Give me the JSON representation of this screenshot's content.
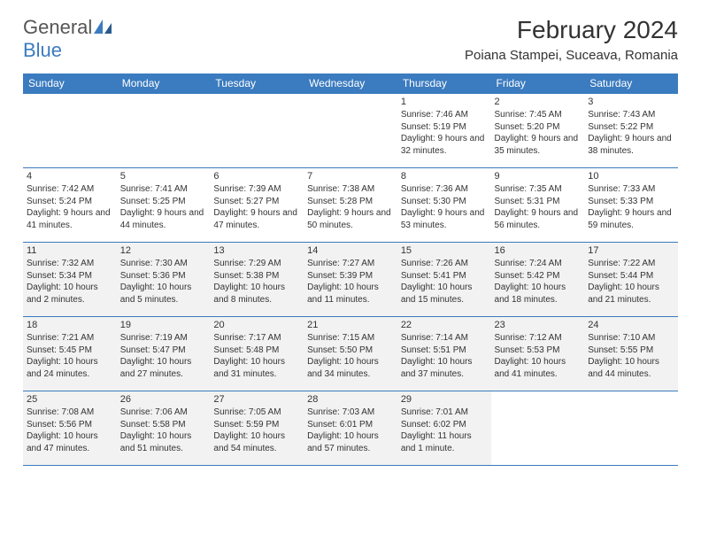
{
  "logo": {
    "general": "General",
    "blue": "Blue"
  },
  "title": {
    "month": "February 2024",
    "location": "Poiana Stampei, Suceava, Romania"
  },
  "colors": {
    "accent": "#3b7bbf",
    "shade": "#f2f2f2",
    "text": "#333333",
    "white": "#ffffff"
  },
  "weekdays": [
    "Sunday",
    "Monday",
    "Tuesday",
    "Wednesday",
    "Thursday",
    "Friday",
    "Saturday"
  ],
  "weeks": [
    [
      {
        "empty": true
      },
      {
        "empty": true
      },
      {
        "empty": true
      },
      {
        "empty": true
      },
      {
        "num": "1",
        "sunrise": "Sunrise: 7:46 AM",
        "sunset": "Sunset: 5:19 PM",
        "daylight": "Daylight: 9 hours and 32 minutes."
      },
      {
        "num": "2",
        "sunrise": "Sunrise: 7:45 AM",
        "sunset": "Sunset: 5:20 PM",
        "daylight": "Daylight: 9 hours and 35 minutes."
      },
      {
        "num": "3",
        "sunrise": "Sunrise: 7:43 AM",
        "sunset": "Sunset: 5:22 PM",
        "daylight": "Daylight: 9 hours and 38 minutes."
      }
    ],
    [
      {
        "num": "4",
        "sunrise": "Sunrise: 7:42 AM",
        "sunset": "Sunset: 5:24 PM",
        "daylight": "Daylight: 9 hours and 41 minutes."
      },
      {
        "num": "5",
        "sunrise": "Sunrise: 7:41 AM",
        "sunset": "Sunset: 5:25 PM",
        "daylight": "Daylight: 9 hours and 44 minutes."
      },
      {
        "num": "6",
        "sunrise": "Sunrise: 7:39 AM",
        "sunset": "Sunset: 5:27 PM",
        "daylight": "Daylight: 9 hours and 47 minutes."
      },
      {
        "num": "7",
        "sunrise": "Sunrise: 7:38 AM",
        "sunset": "Sunset: 5:28 PM",
        "daylight": "Daylight: 9 hours and 50 minutes."
      },
      {
        "num": "8",
        "sunrise": "Sunrise: 7:36 AM",
        "sunset": "Sunset: 5:30 PM",
        "daylight": "Daylight: 9 hours and 53 minutes."
      },
      {
        "num": "9",
        "sunrise": "Sunrise: 7:35 AM",
        "sunset": "Sunset: 5:31 PM",
        "daylight": "Daylight: 9 hours and 56 minutes."
      },
      {
        "num": "10",
        "sunrise": "Sunrise: 7:33 AM",
        "sunset": "Sunset: 5:33 PM",
        "daylight": "Daylight: 9 hours and 59 minutes."
      }
    ],
    [
      {
        "num": "11",
        "sunrise": "Sunrise: 7:32 AM",
        "sunset": "Sunset: 5:34 PM",
        "daylight": "Daylight: 10 hours and 2 minutes.",
        "shaded": true
      },
      {
        "num": "12",
        "sunrise": "Sunrise: 7:30 AM",
        "sunset": "Sunset: 5:36 PM",
        "daylight": "Daylight: 10 hours and 5 minutes.",
        "shaded": true
      },
      {
        "num": "13",
        "sunrise": "Sunrise: 7:29 AM",
        "sunset": "Sunset: 5:38 PM",
        "daylight": "Daylight: 10 hours and 8 minutes.",
        "shaded": true
      },
      {
        "num": "14",
        "sunrise": "Sunrise: 7:27 AM",
        "sunset": "Sunset: 5:39 PM",
        "daylight": "Daylight: 10 hours and 11 minutes.",
        "shaded": true
      },
      {
        "num": "15",
        "sunrise": "Sunrise: 7:26 AM",
        "sunset": "Sunset: 5:41 PM",
        "daylight": "Daylight: 10 hours and 15 minutes.",
        "shaded": true
      },
      {
        "num": "16",
        "sunrise": "Sunrise: 7:24 AM",
        "sunset": "Sunset: 5:42 PM",
        "daylight": "Daylight: 10 hours and 18 minutes.",
        "shaded": true
      },
      {
        "num": "17",
        "sunrise": "Sunrise: 7:22 AM",
        "sunset": "Sunset: 5:44 PM",
        "daylight": "Daylight: 10 hours and 21 minutes.",
        "shaded": true
      }
    ],
    [
      {
        "num": "18",
        "sunrise": "Sunrise: 7:21 AM",
        "sunset": "Sunset: 5:45 PM",
        "daylight": "Daylight: 10 hours and 24 minutes.",
        "shaded": true
      },
      {
        "num": "19",
        "sunrise": "Sunrise: 7:19 AM",
        "sunset": "Sunset: 5:47 PM",
        "daylight": "Daylight: 10 hours and 27 minutes.",
        "shaded": true
      },
      {
        "num": "20",
        "sunrise": "Sunrise: 7:17 AM",
        "sunset": "Sunset: 5:48 PM",
        "daylight": "Daylight: 10 hours and 31 minutes.",
        "shaded": true
      },
      {
        "num": "21",
        "sunrise": "Sunrise: 7:15 AM",
        "sunset": "Sunset: 5:50 PM",
        "daylight": "Daylight: 10 hours and 34 minutes.",
        "shaded": true
      },
      {
        "num": "22",
        "sunrise": "Sunrise: 7:14 AM",
        "sunset": "Sunset: 5:51 PM",
        "daylight": "Daylight: 10 hours and 37 minutes.",
        "shaded": true
      },
      {
        "num": "23",
        "sunrise": "Sunrise: 7:12 AM",
        "sunset": "Sunset: 5:53 PM",
        "daylight": "Daylight: 10 hours and 41 minutes.",
        "shaded": true
      },
      {
        "num": "24",
        "sunrise": "Sunrise: 7:10 AM",
        "sunset": "Sunset: 5:55 PM",
        "daylight": "Daylight: 10 hours and 44 minutes.",
        "shaded": true
      }
    ],
    [
      {
        "num": "25",
        "sunrise": "Sunrise: 7:08 AM",
        "sunset": "Sunset: 5:56 PM",
        "daylight": "Daylight: 10 hours and 47 minutes.",
        "shaded": true
      },
      {
        "num": "26",
        "sunrise": "Sunrise: 7:06 AM",
        "sunset": "Sunset: 5:58 PM",
        "daylight": "Daylight: 10 hours and 51 minutes.",
        "shaded": true
      },
      {
        "num": "27",
        "sunrise": "Sunrise: 7:05 AM",
        "sunset": "Sunset: 5:59 PM",
        "daylight": "Daylight: 10 hours and 54 minutes.",
        "shaded": true
      },
      {
        "num": "28",
        "sunrise": "Sunrise: 7:03 AM",
        "sunset": "Sunset: 6:01 PM",
        "daylight": "Daylight: 10 hours and 57 minutes.",
        "shaded": true
      },
      {
        "num": "29",
        "sunrise": "Sunrise: 7:01 AM",
        "sunset": "Sunset: 6:02 PM",
        "daylight": "Daylight: 11 hours and 1 minute.",
        "shaded": true
      },
      {
        "empty": true
      },
      {
        "empty": true
      }
    ]
  ]
}
